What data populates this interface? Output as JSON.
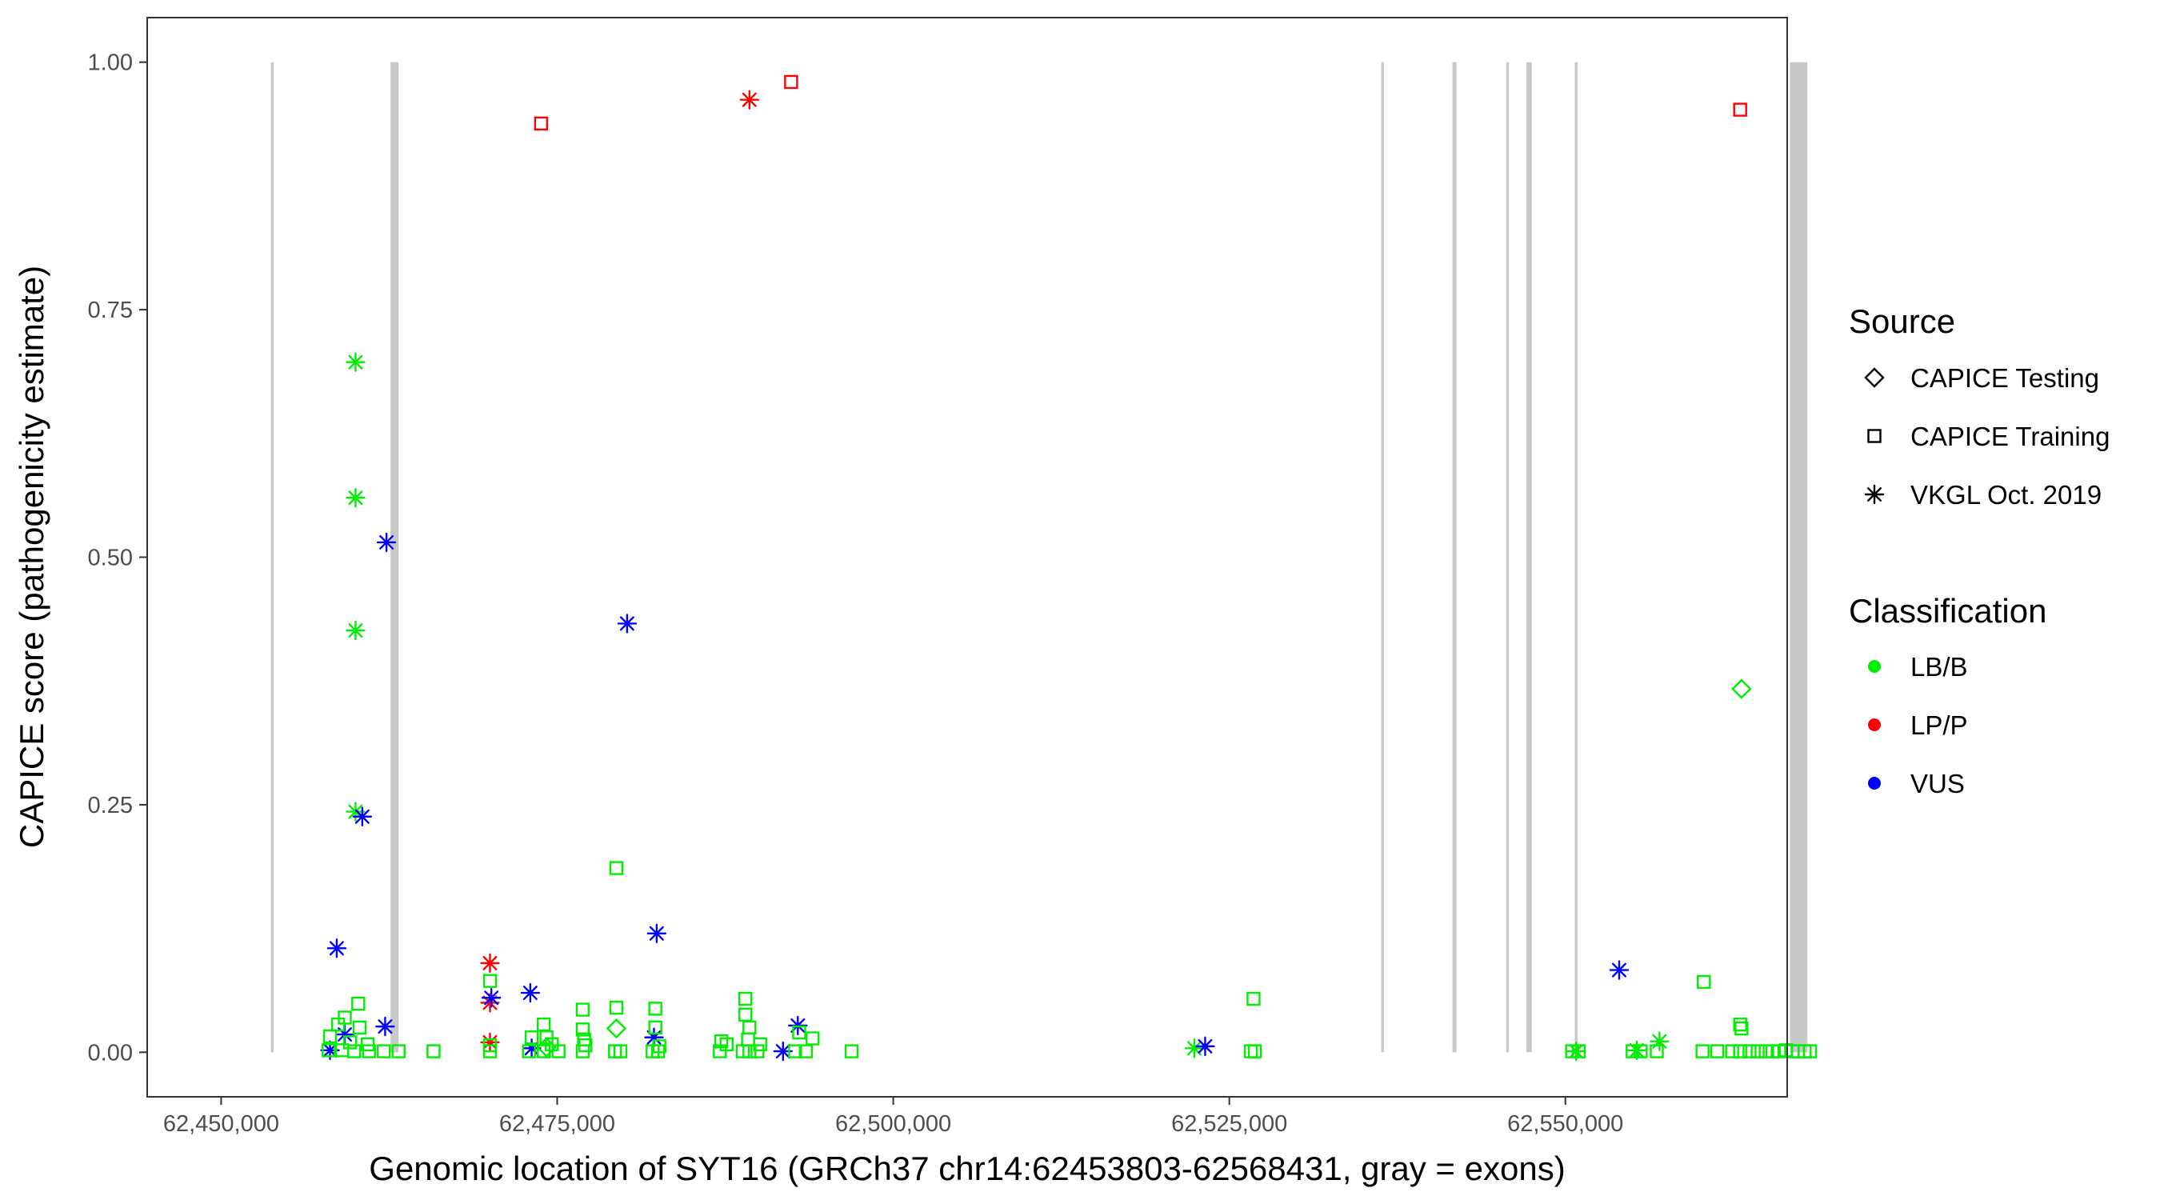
{
  "chart_data": {
    "type": "scatter",
    "title": "",
    "xlabel": "Genomic location of SYT16 (GRCh37 chr14:62453803-62568431, gray = exons)",
    "ylabel": "CAPICE score (pathogenicity estimate)",
    "xlim": [
      62444500,
      62566500
    ],
    "ylim": [
      -0.045,
      1.045
    ],
    "x_ticks": [
      {
        "value": 62450000,
        "label": "62,450,000"
      },
      {
        "value": 62475000,
        "label": "62,475,000"
      },
      {
        "value": 62500000,
        "label": "62,500,000"
      },
      {
        "value": 62525000,
        "label": "62,525,000"
      },
      {
        "value": 62550000,
        "label": "62,550,000"
      }
    ],
    "y_ticks": [
      {
        "value": 0,
        "label": "0.00"
      },
      {
        "value": 0.25,
        "label": "0.25"
      },
      {
        "value": 0.5,
        "label": "0.50"
      },
      {
        "value": 0.75,
        "label": "0.75"
      },
      {
        "value": 1.0,
        "label": "1.00"
      }
    ],
    "grid": false,
    "legend_position": "right",
    "exon_color": "#c8c8c8",
    "exons": [
      {
        "start": 62453700,
        "end": 62453900
      },
      {
        "start": 62462600,
        "end": 62463200
      },
      {
        "start": 62536300,
        "end": 62536500
      },
      {
        "start": 62541600,
        "end": 62541900
      },
      {
        "start": 62545600,
        "end": 62545800
      },
      {
        "start": 62547100,
        "end": 62547500
      },
      {
        "start": 62550700,
        "end": 62550900
      },
      {
        "start": 62566700,
        "end": 62568000
      }
    ],
    "legend": {
      "source_title": "Source",
      "source_items": [
        {
          "label": "CAPICE Testing",
          "shape": "diamond"
        },
        {
          "label": "CAPICE Training",
          "shape": "square"
        },
        {
          "label": "VKGL Oct. 2019",
          "shape": "asterisk"
        }
      ],
      "class_title": "Classification",
      "class_items": [
        {
          "label": "LB/B",
          "color": "#00ee00"
        },
        {
          "label": "LP/P",
          "color": "#ff0000"
        },
        {
          "label": "VUS",
          "color": "#0000ff"
        }
      ]
    },
    "series": [
      {
        "source": "CAPICE Training",
        "classification": "LP/P",
        "points": [
          [
            62473800,
            0.938
          ],
          [
            62492400,
            0.98
          ],
          [
            62563000,
            0.952
          ]
        ]
      },
      {
        "source": "VKGL Oct. 2019",
        "classification": "LP/P",
        "points": [
          [
            62489300,
            0.962
          ],
          [
            62470000,
            0.09
          ],
          [
            62470000,
            0.05
          ],
          [
            62470000,
            0.01
          ]
        ]
      },
      {
        "source": "VKGL Oct. 2019",
        "classification": "LB/B",
        "points": [
          [
            62460000,
            0.697
          ],
          [
            62460000,
            0.56
          ],
          [
            62460000,
            0.426
          ],
          [
            62460000,
            0.243
          ],
          [
            62522400,
            0.004
          ],
          [
            62557000,
            0.011
          ],
          [
            62555300,
            0.002
          ],
          [
            62550800,
            0.001
          ]
        ]
      },
      {
        "source": "VKGL Oct. 2019",
        "classification": "VUS",
        "points": [
          [
            62462300,
            0.515
          ],
          [
            62460500,
            0.238
          ],
          [
            62480200,
            0.433
          ],
          [
            62458600,
            0.105
          ],
          [
            62482400,
            0.12
          ],
          [
            62473000,
            0.06
          ],
          [
            62470100,
            0.055
          ],
          [
            62462200,
            0.026
          ],
          [
            62459200,
            0.018
          ],
          [
            62482200,
            0.015
          ],
          [
            62492900,
            0.027
          ],
          [
            62473100,
            0.004
          ],
          [
            62458100,
            0.002
          ],
          [
            62491800,
            0.001
          ],
          [
            62523200,
            0.006
          ],
          [
            62554000,
            0.083
          ]
        ]
      },
      {
        "source": "CAPICE Testing",
        "classification": "LB/B",
        "points": [
          [
            62563100,
            0.367
          ],
          [
            62479400,
            0.024
          ],
          [
            62474200,
            0.005
          ]
        ]
      },
      {
        "source": "CAPICE Training",
        "classification": "LB/B",
        "points": [
          [
            62479400,
            0.186
          ],
          [
            62470000,
            0.072
          ],
          [
            62526800,
            0.054
          ],
          [
            62560300,
            0.071
          ],
          [
            62489000,
            0.054
          ],
          [
            62460200,
            0.049
          ],
          [
            62476900,
            0.043
          ],
          [
            62479400,
            0.045
          ],
          [
            62482300,
            0.044
          ],
          [
            62459200,
            0.035
          ],
          [
            62489000,
            0.038
          ],
          [
            62458700,
            0.028
          ],
          [
            62474000,
            0.028
          ],
          [
            62460300,
            0.025
          ],
          [
            62482300,
            0.025
          ],
          [
            62489300,
            0.025
          ],
          [
            62563000,
            0.028
          ],
          [
            62563100,
            0.024
          ],
          [
            62476900,
            0.023
          ],
          [
            62493000,
            0.02
          ],
          [
            62458100,
            0.016
          ],
          [
            62473100,
            0.015
          ],
          [
            62474200,
            0.015
          ],
          [
            62477000,
            0.013
          ],
          [
            62487200,
            0.011
          ],
          [
            62489200,
            0.013
          ],
          [
            62494000,
            0.014
          ],
          [
            62459600,
            0.01
          ],
          [
            62460900,
            0.008
          ],
          [
            62470000,
            0.007
          ],
          [
            62474600,
            0.008
          ],
          [
            62477100,
            0.007
          ],
          [
            62482600,
            0.006
          ],
          [
            62487600,
            0.008
          ],
          [
            62490100,
            0.008
          ],
          [
            62458000,
            0.002
          ],
          [
            62459000,
            0.002
          ],
          [
            62459900,
            0.001
          ],
          [
            62461000,
            0.001
          ],
          [
            62462100,
            0.001
          ],
          [
            62463200,
            0.001
          ],
          [
            62465800,
            0.001
          ],
          [
            62470000,
            0.001
          ],
          [
            62472900,
            0.001
          ],
          [
            62474000,
            0.001
          ],
          [
            62475100,
            0.001
          ],
          [
            62476900,
            0.001
          ],
          [
            62479300,
            0.001
          ],
          [
            62479700,
            0.001
          ],
          [
            62482100,
            0.001
          ],
          [
            62482500,
            0.001
          ],
          [
            62487100,
            0.001
          ],
          [
            62488800,
            0.001
          ],
          [
            62489300,
            0.001
          ],
          [
            62489900,
            0.001
          ],
          [
            62492700,
            0.001
          ],
          [
            62493500,
            0.001
          ],
          [
            62496900,
            0.001
          ],
          [
            62526600,
            0.001
          ],
          [
            62526900,
            0.001
          ],
          [
            62550500,
            0.001
          ],
          [
            62551000,
            0.001
          ],
          [
            62555000,
            0.001
          ],
          [
            62555600,
            0.001
          ],
          [
            62556800,
            0.001
          ],
          [
            62560200,
            0.001
          ],
          [
            62561300,
            0.001
          ],
          [
            62562400,
            0.001
          ],
          [
            62563000,
            0.001
          ],
          [
            62563700,
            0.001
          ],
          [
            62564300,
            0.001
          ],
          [
            62564900,
            0.001
          ],
          [
            62565400,
            0.001
          ],
          [
            62565900,
            0.001
          ],
          [
            62566400,
            0.002
          ],
          [
            62566900,
            0.001
          ],
          [
            62567300,
            0.001
          ],
          [
            62567800,
            0.001
          ],
          [
            62568200,
            0.001
          ]
        ]
      }
    ]
  }
}
